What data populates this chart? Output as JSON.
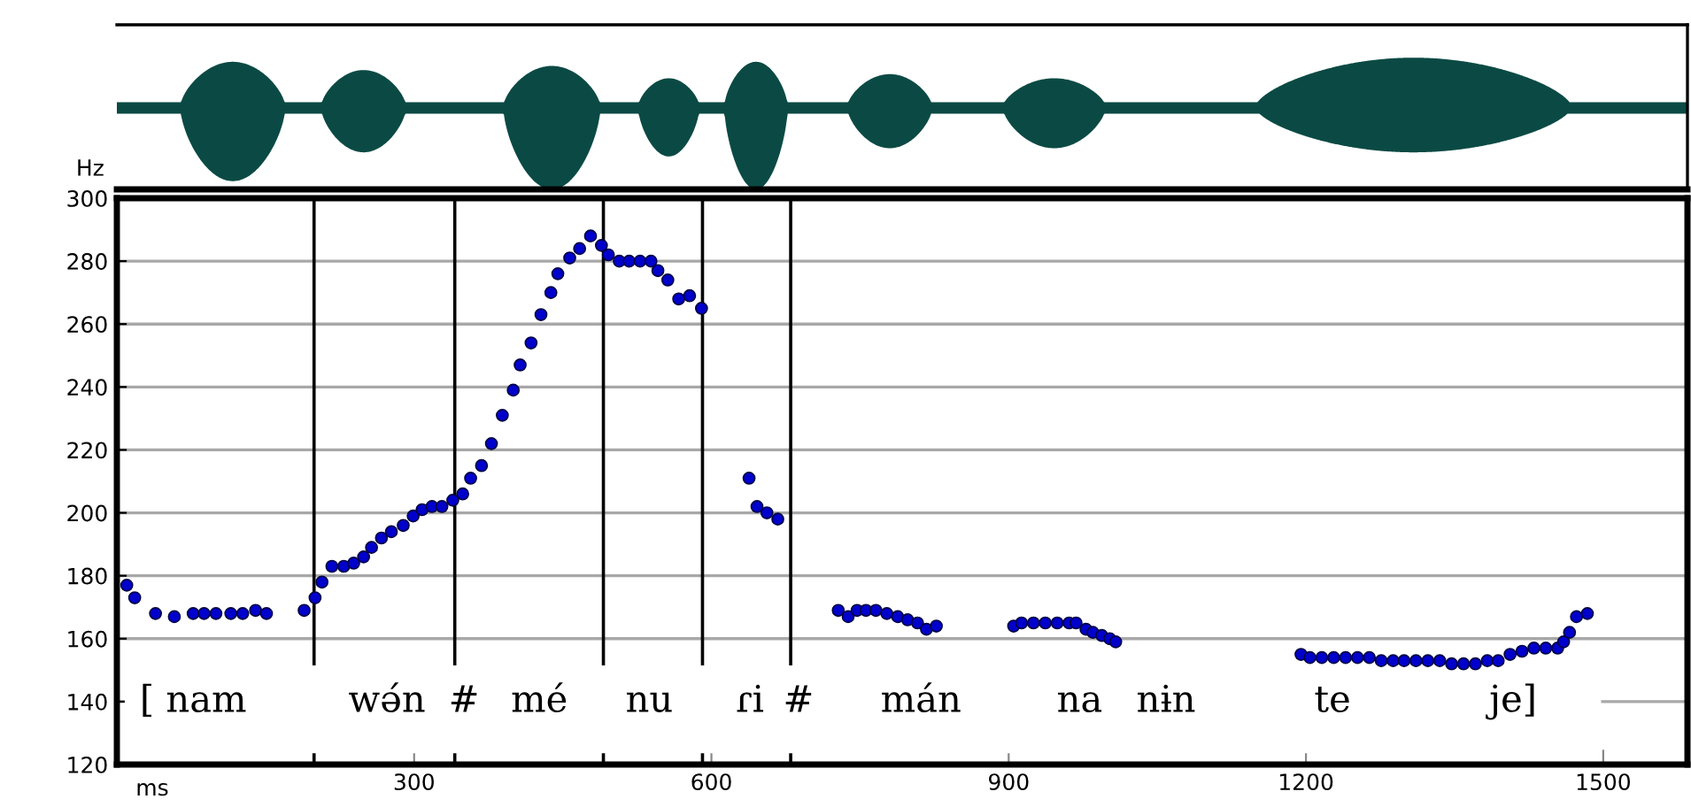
{
  "chart_data": {
    "type": "scatter",
    "xlabel": "ms",
    "ylabel": "Hz",
    "xlim": [
      0,
      1585
    ],
    "ylim": [
      120,
      300
    ],
    "xticks": [
      300,
      600,
      900,
      1200,
      1500
    ],
    "yticks": [
      120,
      140,
      160,
      180,
      200,
      220,
      240,
      260,
      280,
      300
    ],
    "grid": "y",
    "marker": "circle",
    "series": [
      {
        "color": "#0000cc",
        "x": [
          10,
          18,
          39,
          58,
          77,
          88,
          100,
          115,
          127,
          140,
          151,
          189,
          200,
          207,
          217,
          229,
          239,
          249,
          257,
          267,
          277,
          289,
          299,
          308,
          318,
          328,
          339,
          349,
          357,
          368,
          378,
          389,
          400,
          407,
          418,
          428,
          438,
          445,
          457,
          467,
          478,
          489,
          496,
          507,
          517,
          528,
          539,
          546,
          556,
          567,
          578,
          590,
          638,
          646,
          656,
          667,
          728,
          738,
          747,
          756,
          766,
          777,
          788,
          798,
          808,
          817,
          827,
          905,
          913,
          925,
          937,
          949,
          961,
          968,
          978,
          985,
          994,
          1002,
          1008,
          1195,
          1204,
          1216,
          1228,
          1240,
          1252,
          1264,
          1276,
          1288,
          1299,
          1311,
          1323,
          1335,
          1347,
          1359,
          1371,
          1383,
          1394,
          1406,
          1418,
          1430,
          1442,
          1454,
          1460,
          1466,
          1473,
          1484
        ],
        "values": [
          177,
          173,
          168,
          167,
          168,
          168,
          168,
          168,
          168,
          169,
          168,
          169,
          173,
          178,
          183,
          183,
          184,
          186,
          189,
          192,
          194,
          196,
          199,
          201,
          202,
          202,
          204,
          206,
          211,
          215,
          222,
          231,
          239,
          247,
          254,
          263,
          270,
          276,
          281,
          284,
          288,
          285,
          282,
          280,
          280,
          280,
          280,
          277,
          274,
          268,
          269,
          265,
          211,
          202,
          200,
          198,
          169,
          167,
          169,
          169,
          169,
          168,
          167,
          166,
          165,
          163,
          164,
          164,
          165,
          165,
          165,
          165,
          165,
          165,
          163,
          162,
          161,
          160,
          159,
          155,
          154,
          154,
          154,
          154,
          154,
          154,
          153,
          153,
          153,
          153,
          153,
          153,
          152,
          152,
          152,
          153,
          153,
          155,
          156,
          157,
          157,
          157,
          159,
          162,
          167,
          168
        ]
      }
    ],
    "ref_lines": [
      {
        "axis": "x",
        "value": 199,
        "color": "#000000"
      },
      {
        "axis": "x",
        "value": 341,
        "color": "#000000"
      },
      {
        "axis": "x",
        "value": 491,
        "color": "#000000"
      },
      {
        "axis": "x",
        "value": 591,
        "color": "#000000"
      },
      {
        "axis": "x",
        "value": 680,
        "color": "#000000"
      }
    ],
    "annotations": [
      "[ nam",
      "wə́n",
      "#",
      "mé",
      "nu",
      "ɾi",
      "#",
      "mán",
      "na",
      "nɨn",
      "te",
      "je]"
    ]
  }
}
